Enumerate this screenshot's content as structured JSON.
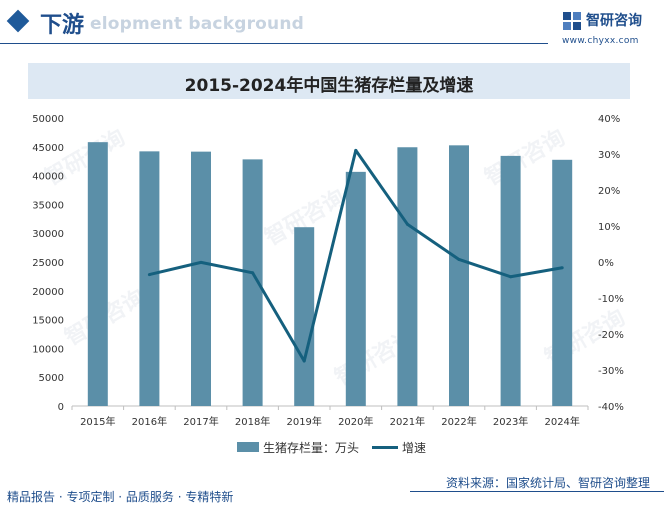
{
  "header": {
    "title": "下游",
    "ghost_text": "elopment background"
  },
  "brand": {
    "name": "智研咨询",
    "url": "www.chyxx.com",
    "watermark": "智研咨询"
  },
  "chart_data": {
    "type": "bar+line",
    "title": "2015-2024年中国生猪存栏量及增速",
    "categories": [
      "2015年",
      "2016年",
      "2017年",
      "2018年",
      "2019年",
      "2020年",
      "2021年",
      "2022年",
      "2023年",
      "2024年"
    ],
    "series": [
      {
        "name": "生猪存栏量：万头",
        "kind": "bar",
        "axis": "left",
        "values": [
          45803,
          44209,
          44159,
          42817,
          31041,
          40650,
          44922,
          45256,
          43422,
          42743
        ]
      },
      {
        "name": "增速",
        "kind": "line",
        "axis": "right",
        "values": [
          null,
          -3.5,
          -0.1,
          -3.0,
          -27.5,
          31.0,
          10.5,
          0.7,
          -4.1,
          -1.6
        ]
      }
    ],
    "y_left": {
      "min": 0,
      "max": 50000,
      "step": 5000,
      "ticks": [
        "0",
        "5000",
        "10000",
        "15000",
        "20000",
        "25000",
        "30000",
        "35000",
        "40000",
        "45000",
        "50000"
      ]
    },
    "y_right": {
      "min": -40,
      "max": 40,
      "step": 10,
      "ticks": [
        "-40%",
        "-30%",
        "-20%",
        "-10%",
        "0%",
        "10%",
        "20%",
        "30%",
        "40%"
      ]
    },
    "colors": {
      "bar": "#5b8fa8",
      "line": "#15607e",
      "title_bg": "#dde8f3",
      "accent": "#1f4e8c"
    }
  },
  "legend": {
    "bar_label": "生猪存栏量：万头",
    "line_label": "增速"
  },
  "source": "资料来源：国家统计局、智研咨询整理",
  "footer": "精品报告 · 专项定制 · 品质服务 · 专精特新"
}
